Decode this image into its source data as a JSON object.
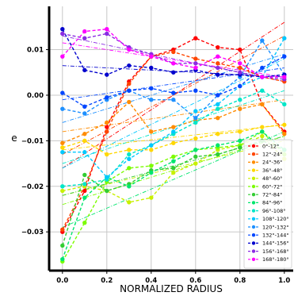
{
  "chart_data": {
    "type": "line",
    "title": "",
    "xlabel": "NORMALIZED RADIUS",
    "ylabel": "e",
    "xlim": [
      -0.06,
      1.04
    ],
    "ylim": [
      -0.0385,
      0.0195
    ],
    "xticks": [
      0.0,
      0.2,
      0.4,
      0.6,
      0.8,
      1.0
    ],
    "xtick_labels": [
      "0.0",
      "0.2",
      "0.4",
      "0.6",
      "0.8",
      "1.0"
    ],
    "yticks": [
      0.01,
      0.0,
      -0.01,
      -0.02,
      -0.03
    ],
    "ytick_labels": [
      "0.01",
      "0.00",
      "−0.01",
      "−0.02",
      "−0.03"
    ],
    "grid": true,
    "legend_position": "lower-right",
    "x": [
      0.0,
      0.1,
      0.2,
      0.3,
      0.4,
      0.5,
      0.6,
      0.7,
      0.8,
      0.9,
      1.0
    ],
    "series": [
      {
        "name": "0°-12°",
        "color": "#ff0000",
        "values": [
          -0.03,
          -0.021,
          -0.007,
          0.003,
          0.0085,
          0.01,
          0.0125,
          0.0105,
          0.01,
          -0.002,
          -0.008
        ],
        "fit": [
          -0.016,
          0.016
        ]
      },
      {
        "name": "12°-24°",
        "color": "#ff4500",
        "values": [
          -0.0295,
          -0.02,
          -0.008,
          0.0025,
          0.0085,
          0.0095,
          0.008,
          0.007,
          0.006,
          0.004,
          0.003
        ],
        "fit": [
          -0.013,
          0.013
        ]
      },
      {
        "name": "24°-36°",
        "color": "#ff8c00",
        "values": [
          -0.0105,
          -0.0085,
          -0.006,
          -0.0015,
          -0.008,
          -0.007,
          -0.0055,
          -0.005,
          -0.003,
          -0.002,
          -0.0085
        ],
        "fit": [
          -0.008,
          -0.001
        ]
      },
      {
        "name": "36°-48°",
        "color": "#ffd700",
        "values": [
          -0.0115,
          -0.01,
          -0.013,
          -0.012,
          -0.012,
          -0.0105,
          -0.0095,
          -0.0085,
          -0.008,
          -0.007,
          -0.0065
        ],
        "fit": [
          -0.012,
          -0.0065
        ]
      },
      {
        "name": "48°-60°",
        "color": "#c8f000",
        "values": [
          -0.021,
          -0.02,
          -0.021,
          -0.0235,
          -0.0225,
          -0.017,
          -0.015,
          -0.012,
          -0.011,
          -0.009,
          -0.014
        ],
        "fit": [
          -0.022,
          -0.01
        ]
      },
      {
        "name": "60°-72°",
        "color": "#7cfc00",
        "values": [
          -0.0365,
          -0.028,
          -0.019,
          -0.016,
          -0.0155,
          -0.0135,
          -0.012,
          -0.0115,
          -0.011,
          -0.008,
          -0.013
        ],
        "fit": [
          -0.024,
          -0.009
        ]
      },
      {
        "name": "72°-84°",
        "color": "#32cd32",
        "values": [
          -0.033,
          -0.0175,
          -0.021,
          -0.0195,
          -0.0165,
          -0.016,
          -0.0135,
          -0.013,
          -0.0115,
          -0.01,
          -0.012
        ],
        "fit": [
          -0.022,
          -0.009
        ]
      },
      {
        "name": "84°-96°",
        "color": "#00e66e",
        "values": [
          -0.036,
          -0.0225,
          -0.018,
          -0.02,
          -0.017,
          -0.0145,
          -0.012,
          -0.011,
          -0.01,
          -0.008,
          -0.012
        ],
        "fit": [
          -0.029,
          -0.008
        ]
      },
      {
        "name": "96°-108°",
        "color": "#00e6c8",
        "values": [
          -0.02,
          -0.0195,
          -0.0185,
          -0.013,
          -0.011,
          -0.0085,
          -0.006,
          -0.003,
          -0.001,
          0.001,
          -0.002
        ],
        "fit": [
          -0.015,
          0.001
        ]
      },
      {
        "name": "108°-120°",
        "color": "#00c8ff",
        "values": [
          -0.0125,
          -0.0125,
          -0.018,
          -0.014,
          -0.011,
          -0.008,
          -0.0035,
          -0.002,
          0.002,
          0.004,
          0.0125
        ],
        "fit": [
          -0.016,
          0.008
        ]
      },
      {
        "name": "120°-132°",
        "color": "#1e90ff",
        "values": [
          -0.003,
          -0.004,
          -0.001,
          0.001,
          -0.001,
          -0.001,
          -0.005,
          0.0,
          0.004,
          0.012,
          0.0045
        ],
        "fit": [
          -0.006,
          0.009
        ]
      },
      {
        "name": "132°-144°",
        "color": "#0046ff",
        "values": [
          0.0005,
          -0.0025,
          -0.0005,
          0.001,
          0.0015,
          0.0005,
          0.001,
          0.0,
          0.002,
          0.006,
          0.0085
        ],
        "fit": [
          -0.001,
          0.006
        ]
      },
      {
        "name": "144°-156°",
        "color": "#0000cd",
        "values": [
          0.0145,
          0.0055,
          0.0045,
          0.0065,
          0.006,
          0.005,
          0.0055,
          0.0045,
          0.0045,
          0.004,
          0.0045
        ],
        "fit": [
          0.0065,
          0.004
        ]
      },
      {
        "name": "156°-168°",
        "color": "#8a2be2",
        "values": [
          0.0135,
          0.0125,
          0.0135,
          0.0105,
          0.009,
          0.007,
          0.007,
          0.006,
          0.005,
          0.004,
          0.0035
        ],
        "fit": [
          0.013,
          0.003
        ]
      },
      {
        "name": "168°-180°",
        "color": "#ff00ff",
        "values": [
          0.0085,
          0.014,
          0.0145,
          0.01,
          0.0085,
          0.007,
          0.006,
          0.0085,
          0.007,
          0.004,
          0.004
        ],
        "fit": [
          0.0115,
          0.004
        ]
      }
    ]
  }
}
